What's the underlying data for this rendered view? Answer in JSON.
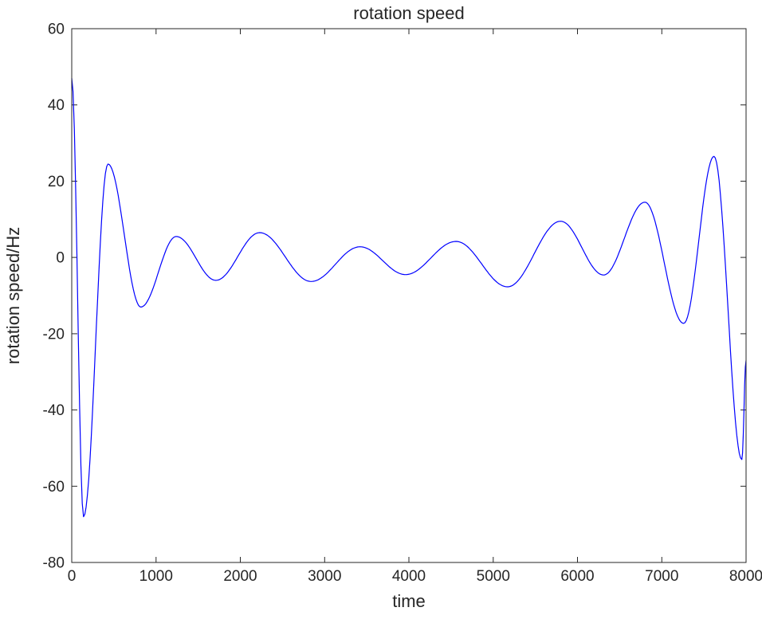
{
  "chart_data": {
    "type": "line",
    "title": "rotation speed",
    "xlabel": "time",
    "ylabel": "rotation speed/Hz",
    "xlim": [
      0,
      8000
    ],
    "ylim": [
      -80,
      60
    ],
    "xticks": [
      0,
      1000,
      2000,
      3000,
      4000,
      5000,
      6000,
      7000,
      8000
    ],
    "yticks": [
      -80,
      -60,
      -40,
      -20,
      0,
      20,
      40,
      60
    ],
    "grid": false,
    "legend": false,
    "line_color": "#0000FF",
    "axis_color": "#262626",
    "background_color": "#ffffff",
    "series": [
      {
        "name": "rotation speed",
        "interpolation": "cosine-through-extrema",
        "points": [
          [
            0,
            47
          ],
          [
            140,
            -68
          ],
          [
            430,
            24.5
          ],
          [
            820,
            -13
          ],
          [
            1240,
            5.5
          ],
          [
            1710,
            -6
          ],
          [
            2230,
            6.5
          ],
          [
            2840,
            -6.3
          ],
          [
            3420,
            2.8
          ],
          [
            3960,
            -4.5
          ],
          [
            4560,
            4.2
          ],
          [
            5170,
            -7.7
          ],
          [
            5800,
            9.5
          ],
          [
            6310,
            -4.6
          ],
          [
            6800,
            14.5
          ],
          [
            7260,
            -17.3
          ],
          [
            7620,
            26.5
          ],
          [
            7950,
            -53
          ],
          [
            8000,
            -27
          ]
        ]
      }
    ]
  }
}
